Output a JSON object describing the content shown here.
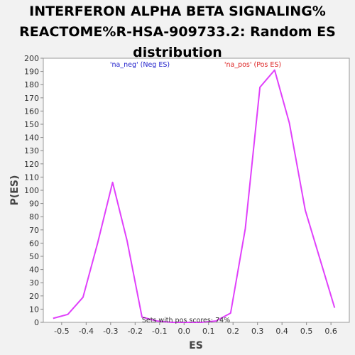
{
  "chart_data": {
    "type": "line",
    "title": "INTERFERON ALPHA BETA SIGNALING%\nREACTOME%R-HSA-909733.2: Random ES\ndistribution",
    "xlabel": "ES",
    "ylabel": "P(ES)",
    "xlim": [
      -0.575,
      0.675
    ],
    "ylim": [
      0,
      200
    ],
    "x_ticks": [
      -0.5,
      -0.4,
      -0.3,
      -0.2,
      -0.1,
      0.0,
      0.1,
      0.2,
      0.3,
      0.4,
      0.5,
      0.6
    ],
    "x_tick_labels": [
      "-0.5",
      "-0.4",
      "-0.3",
      "-0.2",
      "-0.1",
      "0.0",
      "0.1",
      "0.2",
      "0.3",
      "0.4",
      "0.5",
      "0.6"
    ],
    "y_ticks": [
      0,
      10,
      20,
      30,
      40,
      50,
      60,
      70,
      80,
      90,
      100,
      110,
      120,
      130,
      140,
      150,
      160,
      170,
      180,
      190,
      200
    ],
    "y_tick_labels": [
      "0",
      "10",
      "20",
      "30",
      "40",
      "50",
      "60",
      "70",
      "80",
      "90",
      "100",
      "110",
      "120",
      "130",
      "140",
      "150",
      "160",
      "170",
      "180",
      "190",
      "200"
    ],
    "grid": false,
    "series": [
      {
        "color": "#e040fb",
        "x": [
          -0.535,
          -0.475,
          -0.413,
          -0.353,
          -0.292,
          -0.233,
          -0.172,
          -0.111,
          -0.05,
          0.01,
          0.07,
          0.13,
          0.19,
          0.25,
          0.31,
          0.37,
          0.43,
          0.495,
          0.555,
          0.615
        ],
        "y": [
          3,
          6,
          19,
          60,
          106,
          62,
          4,
          1,
          0,
          0,
          0,
          1,
          7,
          71,
          178,
          191,
          151,
          85,
          48,
          11
        ]
      }
    ],
    "annotations": [
      {
        "text": "'na_neg' (Neg ES)",
        "color": "#2222cc"
      },
      {
        "text": "'na_pos' (Pos ES)",
        "color": "#dd2222"
      },
      {
        "text": "Sets with pos scores: 74%",
        "color": "#333333"
      }
    ]
  }
}
